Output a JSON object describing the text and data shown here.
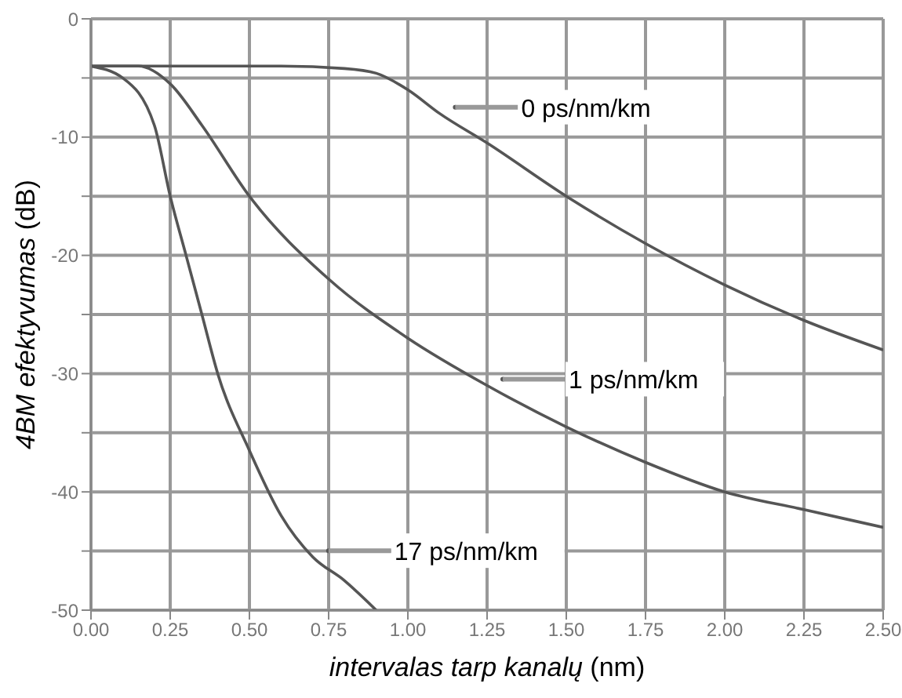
{
  "chart_data": {
    "type": "line",
    "xlabel": "intervalas tarp kanalų (nm)",
    "ylabel": "4BM efektyvumas (dB)",
    "xlim": [
      0,
      2.5
    ],
    "xticks": [
      {
        "value": 0,
        "label": "0.00"
      },
      0.25,
      {
        "value": 0.5,
        "label": "0.50"
      },
      0.75,
      {
        "value": 1,
        "label": "1.00"
      },
      1.25,
      {
        "value": 1.5,
        "label": "1.50"
      },
      1.75,
      {
        "value": 2,
        "label": "2.00"
      },
      2.25,
      {
        "value": 2.5,
        "label": "2.50"
      }
    ],
    "ylim": [
      -50,
      0
    ],
    "yticks": [
      -50,
      {
        "value": -45,
        "label": null
      },
      -40,
      {
        "value": -35,
        "label": null
      },
      -30,
      {
        "value": -25,
        "label": null
      },
      -20,
      {
        "value": -15,
        "label": null
      },
      -10,
      {
        "value": -5,
        "label": null
      },
      0
    ],
    "grid": true,
    "marker": "none",
    "line_style": "solid",
    "series": [
      {
        "name": "0 ps/nm/km",
        "color": "#555555",
        "x": [
          0,
          0.2,
          0.4,
          0.6,
          0.8,
          0.9,
          1.0,
          1.1,
          1.25,
          1.5,
          1.75,
          2.0,
          2.25,
          2.5
        ],
        "values": [
          -4,
          -4,
          -4,
          -4,
          -4.2,
          -4.6,
          -6,
          -8,
          -10.5,
          -15,
          -19,
          -22.5,
          -25.5,
          -28
        ]
      },
      {
        "name": "1 ps/nm/km",
        "color": "#555555",
        "x": [
          0,
          0.15,
          0.25,
          0.35,
          0.5,
          0.75,
          1.0,
          1.25,
          1.5,
          1.75,
          2.0,
          2.25,
          2.5
        ],
        "values": [
          -4,
          -4,
          -5.5,
          -9,
          -15,
          -22,
          -27,
          -31,
          -34.5,
          -37.5,
          -40,
          -41.5,
          -43
        ]
      },
      {
        "name": "17 ps/nm/km",
        "color": "#555555",
        "x": [
          0,
          0.1,
          0.2,
          0.25,
          0.3,
          0.35,
          0.4,
          0.5,
          0.6,
          0.7,
          0.8,
          0.9
        ],
        "values": [
          -4,
          -5,
          -9,
          -15,
          -20,
          -25,
          -30,
          -36.5,
          -42,
          -45.5,
          -47.5,
          -50
        ]
      }
    ]
  }
}
